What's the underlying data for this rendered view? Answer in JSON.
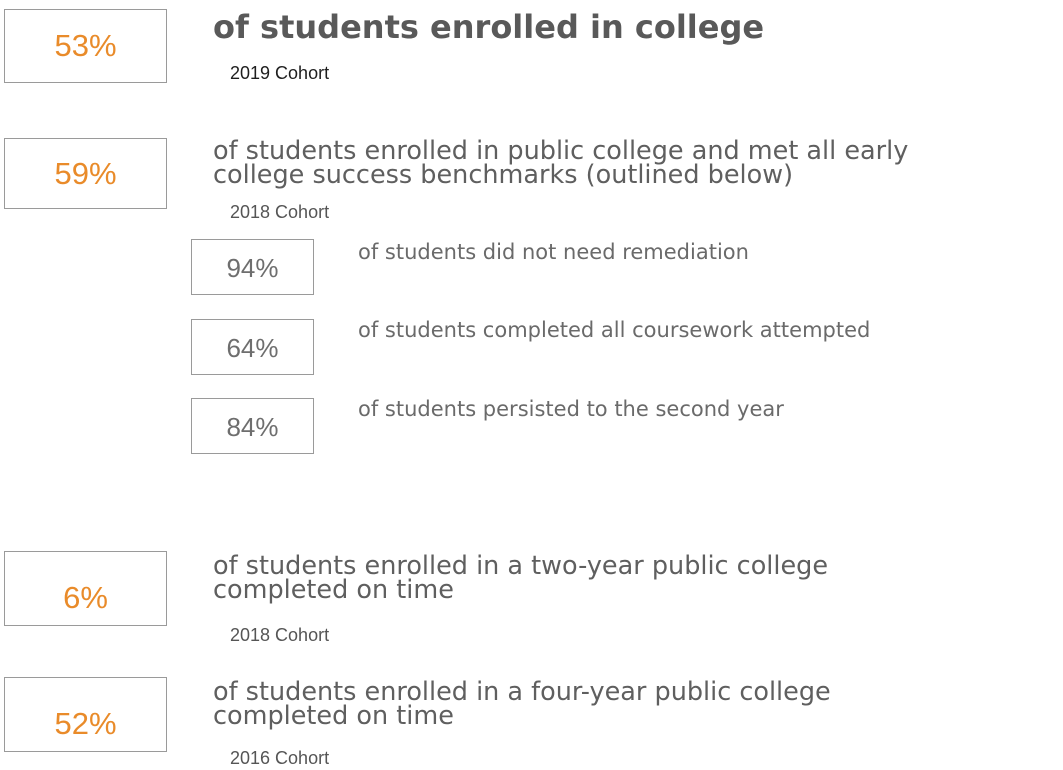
{
  "stat_1": {
    "value": "53%",
    "headline": "of students enrolled in college",
    "cohort": "2019 Cohort"
  },
  "stat_2": {
    "value": "59%",
    "line_1": "of students enrolled in public college and met all early",
    "line_2": "college success benchmarks (outlined below)",
    "cohort": "2018 Cohort"
  },
  "benchmarks": [
    {
      "value": "94%",
      "label": "of students did not need remediation"
    },
    {
      "value": "64%",
      "label": "of students completed all coursework attempted"
    },
    {
      "value": "84%",
      "label": "of students persisted to the second year"
    }
  ],
  "stat_3": {
    "value": "6%",
    "line_1": "of students enrolled in a two-year public college",
    "line_2": "completed on time",
    "cohort": "2018 Cohort"
  },
  "stat_4": {
    "value": "52%",
    "line_1": "of students enrolled in a four-year public college",
    "line_2": "completed on time",
    "cohort": "2016 Cohort"
  },
  "colors": {
    "accent": "#e98b2a",
    "border": "#9a9a9a",
    "text": "#5f5f5f"
  }
}
